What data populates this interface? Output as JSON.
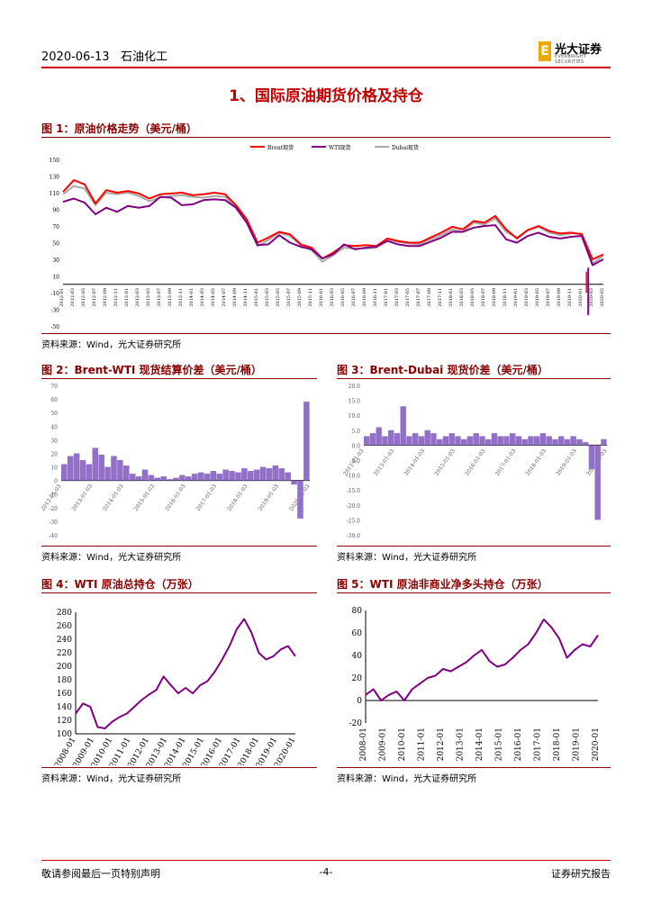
{
  "header": {
    "date": "2020-06-13",
    "category": "石油化工",
    "logo": {
      "mark": "E",
      "cn": "光大证券",
      "en": "EVERBRIGHT SECURITIES"
    }
  },
  "section_title": "1、国际原油期货价格及持仓",
  "colors": {
    "accent": "#8b0000",
    "brent": "#ff0000",
    "wti": "#800080",
    "dubai": "#a9a9a9"
  },
  "figures": {
    "fig1": {
      "title": "图 1：原油价格走势（美元/桶）",
      "source": "资料来源：Wind，光大证券研究所"
    },
    "fig2": {
      "title": "图 2：Brent-WTI 现货结算价差（美元/桶）",
      "source": "资料来源：Wind，光大证券研究所"
    },
    "fig3": {
      "title": "图 3：Brent-Dubai 现货价差（美元/桶）",
      "source": "资料来源：Wind，光大证券研究所"
    },
    "fig4": {
      "title": "图 4：WTI 原油总持仓（万张）",
      "source": "资料来源：Wind，光大证券研究所"
    },
    "fig5": {
      "title": "图 5：WTI 原油非商业净多头持仓（万张）",
      "source": "资料来源：Wind，光大证券研究所"
    }
  },
  "footer": {
    "left": "敬请参阅最后一页特别声明",
    "center": "-4-",
    "right": "证券研究报告"
  },
  "chart_data": [
    {
      "id": "fig1",
      "type": "line",
      "legend": [
        "Brent现货",
        "WTI现货",
        "Dubai现货"
      ],
      "ylim": [
        -50,
        150
      ],
      "yticks": [
        150,
        130,
        110,
        90,
        70,
        50,
        30,
        10,
        -10,
        -30,
        -50
      ],
      "xlabels": [
        "2012-01",
        "2012-03",
        "2012-05",
        "2012-07",
        "2012-09",
        "2012-11",
        "2013-01",
        "2013-03",
        "2013-05",
        "2013-07",
        "2013-09",
        "2013-11",
        "2014-01",
        "2014-03",
        "2014-05",
        "2014-07",
        "2014-09",
        "2014-11",
        "2015-01",
        "2015-03",
        "2015-05",
        "2015-07",
        "2015-09",
        "2015-11",
        "2016-01",
        "2016-03",
        "2016-05",
        "2016-07",
        "2016-09",
        "2016-11",
        "2017-01",
        "2017-03",
        "2017-05",
        "2017-07",
        "2017-09",
        "2017-11",
        "2018-01",
        "2018-03",
        "2018-05",
        "2018-07",
        "2018-09",
        "2018-11",
        "2019-01",
        "2019-03",
        "2019-05",
        "2019-07",
        "2019-09",
        "2019-11",
        "2020-01",
        "2020-03",
        "2020-05"
      ],
      "series": [
        {
          "name": "Brent现货",
          "values": [
            111,
            125,
            120,
            97,
            113,
            110,
            112,
            109,
            103,
            108,
            109,
            110,
            107,
            108,
            110,
            108,
            95,
            78,
            50,
            56,
            63,
            60,
            48,
            44,
            31,
            38,
            47,
            46,
            47,
            46,
            55,
            52,
            50,
            50,
            56,
            62,
            69,
            66,
            76,
            74,
            82,
            66,
            55,
            65,
            70,
            64,
            61,
            62,
            60,
            30,
            36
          ]
        },
        {
          "name": "WTI现货",
          "values": [
            99,
            103,
            98,
            84,
            92,
            87,
            94,
            92,
            94,
            105,
            104,
            95,
            96,
            101,
            102,
            101,
            92,
            74,
            47,
            48,
            59,
            50,
            45,
            42,
            31,
            36,
            48,
            42,
            44,
            45,
            52,
            48,
            46,
            46,
            51,
            56,
            63,
            63,
            68,
            70,
            71,
            54,
            50,
            58,
            62,
            57,
            55,
            57,
            58,
            23,
            30
          ]
        },
        {
          "name": "Dubai现货",
          "values": [
            108,
            118,
            115,
            95,
            110,
            108,
            110,
            106,
            100,
            104,
            106,
            107,
            105,
            104,
            106,
            105,
            92,
            74,
            46,
            53,
            62,
            58,
            47,
            41,
            27,
            35,
            44,
            43,
            43,
            44,
            54,
            51,
            49,
            48,
            54,
            59,
            66,
            63,
            74,
            72,
            79,
            63,
            56,
            65,
            69,
            62,
            59,
            61,
            61,
            25,
            34
          ]
        }
      ]
    },
    {
      "id": "fig2",
      "type": "bar",
      "ylim": [
        -40,
        70
      ],
      "yticks": [
        70,
        60,
        50,
        40,
        30,
        20,
        10,
        0,
        -10,
        -20,
        -30,
        -40
      ],
      "xlabels": [
        "2012-01-03",
        "2013-01-03",
        "2014-01-03",
        "2015-01-03",
        "2016-01-03",
        "2017-01-03",
        "2018-01-03",
        "2019-01-03",
        "2020-01-03"
      ],
      "values": [
        12,
        18,
        20,
        15,
        12,
        24,
        19,
        10,
        18,
        15,
        11,
        5,
        3,
        8,
        4,
        2,
        3,
        1,
        2,
        4,
        3,
        5,
        6,
        5,
        7,
        5,
        8,
        7,
        6,
        9,
        7,
        8,
        10,
        9,
        11,
        9,
        6,
        -3,
        -28,
        58
      ]
    },
    {
      "id": "fig3",
      "type": "bar",
      "ylim": [
        -30,
        20
      ],
      "yticks": [
        "20.0",
        "15.0",
        "10.0",
        "5.0",
        "0.0",
        "-5.0",
        "-10.0",
        "-15.0",
        "-20.0",
        "-25.0",
        "-30.0"
      ],
      "xlabels": [
        "2012-01-03",
        "2013-01-03",
        "2014-01-03",
        "2015-01-03",
        "2016-01-03",
        "2017-01-03",
        "2018-01-03",
        "2019-01-03",
        "2020-01-03"
      ],
      "values": [
        3,
        4,
        6,
        3,
        5,
        4,
        13,
        3,
        4,
        3,
        5,
        4,
        2,
        3,
        4,
        3,
        2,
        3,
        4,
        3,
        2,
        4,
        3,
        3,
        4,
        3,
        2,
        3,
        3,
        4,
        3,
        2,
        3,
        2,
        3,
        2,
        1,
        -8,
        -25,
        2
      ]
    },
    {
      "id": "fig4",
      "type": "line",
      "ylim": [
        100,
        280
      ],
      "yticks": [
        280,
        260,
        240,
        220,
        200,
        180,
        160,
        140,
        120,
        100
      ],
      "xlabels": [
        "2008-01",
        "2009-01",
        "2010-01",
        "2011-01",
        "2012-01",
        "2013-01",
        "2014-01",
        "2015-01",
        "2016-01",
        "2017-01",
        "2018-01",
        "2019-01",
        "2020-01"
      ],
      "values": [
        130,
        145,
        140,
        110,
        108,
        118,
        125,
        130,
        140,
        150,
        158,
        165,
        185,
        172,
        160,
        168,
        160,
        172,
        178,
        192,
        210,
        230,
        255,
        270,
        250,
        220,
        210,
        215,
        225,
        230,
        215
      ]
    },
    {
      "id": "fig5",
      "type": "line",
      "ylim": [
        -20,
        80
      ],
      "yticks": [
        80,
        60,
        40,
        20,
        0,
        -20
      ],
      "xlabels": [
        "2008-01",
        "2009-01",
        "2010-01",
        "2011-01",
        "2012-01",
        "2013-01",
        "2014-01",
        "2015-01",
        "2016-01",
        "2017-01",
        "2018-01",
        "2019-01",
        "2020-01"
      ],
      "values": [
        5,
        10,
        0,
        5,
        8,
        0,
        10,
        15,
        20,
        22,
        28,
        26,
        30,
        34,
        40,
        45,
        35,
        30,
        32,
        38,
        45,
        50,
        60,
        72,
        65,
        55,
        38,
        45,
        50,
        48,
        58
      ]
    }
  ]
}
